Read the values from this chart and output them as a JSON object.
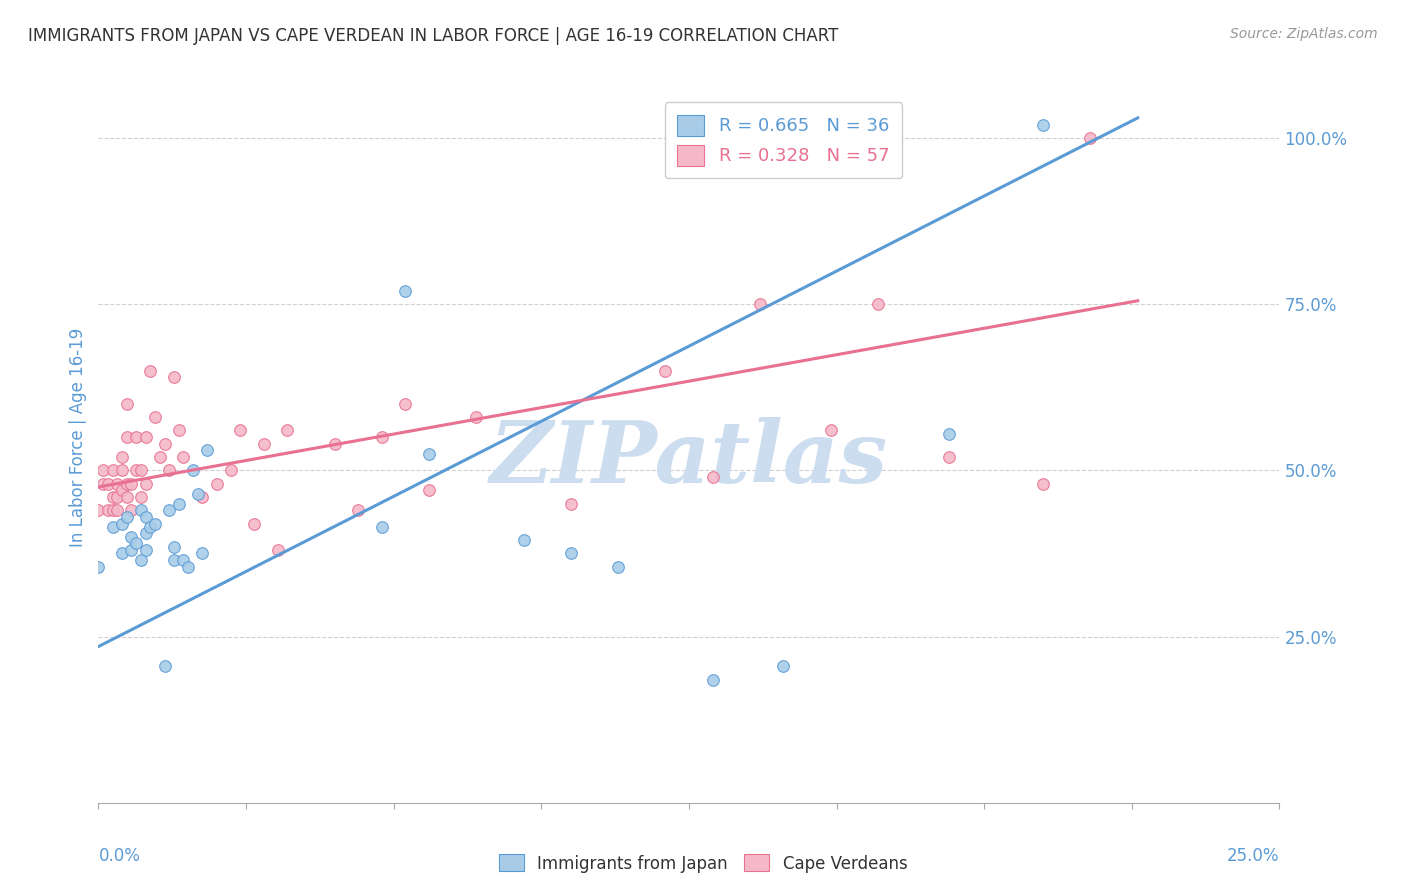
{
  "title": "IMMIGRANTS FROM JAPAN VS CAPE VERDEAN IN LABOR FORCE | AGE 16-19 CORRELATION CHART",
  "source": "Source: ZipAtlas.com",
  "ylabel": "In Labor Force | Age 16-19",
  "legend_japan": {
    "R": "0.665",
    "N": "36"
  },
  "legend_cape": {
    "R": "0.328",
    "N": "57"
  },
  "watermark": "ZIPatlas",
  "japan_scatter_x": [
    0.0,
    0.003,
    0.005,
    0.005,
    0.006,
    0.007,
    0.007,
    0.008,
    0.009,
    0.009,
    0.01,
    0.01,
    0.01,
    0.011,
    0.012,
    0.014,
    0.015,
    0.016,
    0.016,
    0.017,
    0.018,
    0.019,
    0.02,
    0.021,
    0.022,
    0.023,
    0.06,
    0.065,
    0.07,
    0.09,
    0.1,
    0.11,
    0.13,
    0.145,
    0.18,
    0.2
  ],
  "japan_scatter_y": [
    0.355,
    0.415,
    0.375,
    0.42,
    0.43,
    0.38,
    0.4,
    0.39,
    0.365,
    0.44,
    0.38,
    0.405,
    0.43,
    0.415,
    0.42,
    0.205,
    0.44,
    0.385,
    0.365,
    0.45,
    0.365,
    0.355,
    0.5,
    0.465,
    0.375,
    0.53,
    0.415,
    0.77,
    0.525,
    0.395,
    0.375,
    0.355,
    0.185,
    0.205,
    0.555,
    1.02
  ],
  "cape_scatter_x": [
    0.0,
    0.001,
    0.001,
    0.002,
    0.002,
    0.003,
    0.003,
    0.003,
    0.004,
    0.004,
    0.004,
    0.005,
    0.005,
    0.005,
    0.006,
    0.006,
    0.006,
    0.006,
    0.007,
    0.007,
    0.008,
    0.008,
    0.009,
    0.009,
    0.01,
    0.01,
    0.011,
    0.012,
    0.013,
    0.014,
    0.015,
    0.016,
    0.017,
    0.018,
    0.022,
    0.025,
    0.028,
    0.03,
    0.033,
    0.035,
    0.038,
    0.04,
    0.05,
    0.055,
    0.06,
    0.065,
    0.07,
    0.08,
    0.1,
    0.12,
    0.13,
    0.14,
    0.155,
    0.165,
    0.18,
    0.2,
    0.21
  ],
  "cape_scatter_y": [
    0.44,
    0.48,
    0.5,
    0.44,
    0.48,
    0.46,
    0.44,
    0.5,
    0.44,
    0.46,
    0.48,
    0.5,
    0.47,
    0.52,
    0.46,
    0.48,
    0.55,
    0.6,
    0.44,
    0.48,
    0.5,
    0.55,
    0.46,
    0.5,
    0.55,
    0.48,
    0.65,
    0.58,
    0.52,
    0.54,
    0.5,
    0.64,
    0.56,
    0.52,
    0.46,
    0.48,
    0.5,
    0.56,
    0.42,
    0.54,
    0.38,
    0.56,
    0.54,
    0.44,
    0.55,
    0.6,
    0.47,
    0.58,
    0.45,
    0.65,
    0.49,
    0.75,
    0.56,
    0.75,
    0.52,
    0.48,
    1.0
  ],
  "japan_line_x": [
    0.0,
    0.22
  ],
  "japan_line_y": [
    0.235,
    1.03
  ],
  "cape_line_x": [
    0.0,
    0.22
  ],
  "cape_line_y": [
    0.475,
    0.755
  ],
  "xlim": [
    0.0,
    0.25
  ],
  "ylim": [
    0.0,
    1.1
  ],
  "japan_color": "#a8cce8",
  "cape_color": "#f4b8c8",
  "japan_edge_color": "#5b9bd5",
  "cape_edge_color": "#e87090",
  "japan_line_color": "#5b9bd5",
  "cape_line_color": "#e87090",
  "grid_color": "#d0d0d0",
  "title_color": "#333333",
  "axis_label_color": "#5b9bd5",
  "tick_label_color": "#5b9bd5",
  "watermark_color": "#ccddf0",
  "bg_color": "#ffffff"
}
